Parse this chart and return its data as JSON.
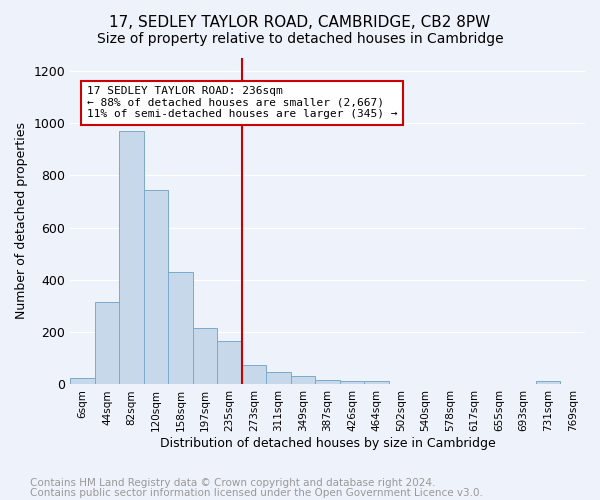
{
  "title": "17, SEDLEY TAYLOR ROAD, CAMBRIDGE, CB2 8PW",
  "subtitle": "Size of property relative to detached houses in Cambridge",
  "xlabel": "Distribution of detached houses by size in Cambridge",
  "ylabel": "Number of detached properties",
  "bar_color": "#c8d8eb",
  "bar_edge_color": "#7aaaca",
  "bg_color": "#eef2fa",
  "grid_color": "#ffffff",
  "categories": [
    "6sqm",
    "44sqm",
    "82sqm",
    "120sqm",
    "158sqm",
    "197sqm",
    "235sqm",
    "273sqm",
    "311sqm",
    "349sqm",
    "387sqm",
    "426sqm",
    "464sqm",
    "502sqm",
    "540sqm",
    "578sqm",
    "617sqm",
    "655sqm",
    "693sqm",
    "731sqm",
    "769sqm"
  ],
  "values": [
    25,
    315,
    970,
    745,
    430,
    215,
    165,
    75,
    48,
    32,
    18,
    15,
    14,
    0,
    0,
    0,
    0,
    0,
    0,
    13,
    0
  ],
  "vline_index": 6,
  "vline_color": "#cc0000",
  "annotation_line1": "17 SEDLEY TAYLOR ROAD: 236sqm",
  "annotation_line2": "← 88% of detached houses are smaller (2,667)",
  "annotation_line3": "11% of semi-detached houses are larger (345) →",
  "annotation_box_color": "#ffffff",
  "annotation_box_edge": "#cc0000",
  "ylim": [
    0,
    1250
  ],
  "yticks": [
    0,
    200,
    400,
    600,
    800,
    1000,
    1200
  ],
  "footnote1": "Contains HM Land Registry data © Crown copyright and database right 2024.",
  "footnote2": "Contains public sector information licensed under the Open Government Licence v3.0.",
  "title_fontsize": 11,
  "subtitle_fontsize": 10,
  "footnote_fontsize": 7.5,
  "footnote_color": "#999999",
  "ylabel_text": "Number of detached properties"
}
